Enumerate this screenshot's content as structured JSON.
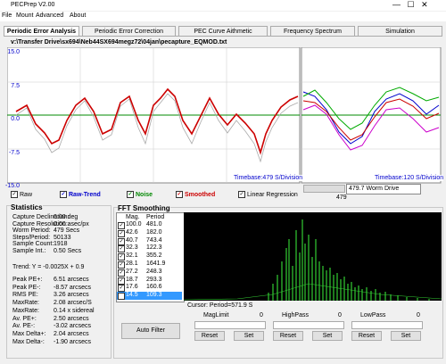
{
  "window": {
    "title": "PECPrep V2.00"
  },
  "menu": [
    "File",
    "Mount",
    "Advanced",
    "About"
  ],
  "tabs": [
    "Periodic Error Analysis",
    "Periodic Error Correction",
    "PEC Curve Aithmetic",
    "Frequency Spectrum",
    "Simulation"
  ],
  "file_path": "v:\\Transfer Drive\\sx694\\Neb44SX694megz72\\04jan\\pecapture_EQMOD.txt",
  "main_plot": {
    "yticks": [
      "15.0",
      "7.5",
      "0.0",
      "-7.5",
      "-15.0"
    ],
    "timebase": "Timebase:479 S/Division"
  },
  "side_plot": {
    "timebase": "Timebase:120 S/Division"
  },
  "checkboxes": [
    "Raw",
    "Raw-Trend",
    "Noise",
    "Smoothed",
    "Linear Regression"
  ],
  "worm": {
    "dropdown": "479.7 Worm Drive",
    "value": "479"
  },
  "statistics": {
    "title": "Statistics",
    "rows_top": [
      [
        "Capture Declination:",
        "0.00 deg"
      ],
      [
        "Capture Resolution:",
        "0.00 asec/px"
      ],
      [
        "Worm Period:",
        "479 Secs"
      ],
      [
        "Steps/Period:",
        "50133"
      ],
      [
        "Sample Count:",
        "1918"
      ],
      [
        "Sample Int.:",
        "0.50 Secs"
      ]
    ],
    "trend": "Trend: Y = -0.0025X + 0.9",
    "rows_bottom": [
      [
        "Peak PE+:",
        "6.51 arcsecs"
      ],
      [
        "Peak PE-:",
        "-8.57 arcsecs"
      ],
      [
        "RMS PE:",
        "3.26 arcsecs"
      ],
      [
        "MaxRate:",
        "2.08 arcsec/S"
      ],
      [
        "MaxRate:",
        "0.14 x sidereal"
      ],
      [
        "Av. PE+:",
        "2.50 arcsecs"
      ],
      [
        "Av. PE-:",
        "-3.02 arcsecs"
      ],
      [
        "Max Delta+:",
        "2.04 arcsecs"
      ],
      [
        "Max Delta-:",
        "-1.90 arcsecs"
      ]
    ]
  },
  "fft": {
    "title": "FFT Smoothing",
    "columns": [
      "Mag.",
      "Period"
    ],
    "rows": [
      [
        "100.0",
        "481.0"
      ],
      [
        "42.6",
        "182.0"
      ],
      [
        "40.7",
        "743.4"
      ],
      [
        "32.3",
        "122.3"
      ],
      [
        "32.1",
        "355.2"
      ],
      [
        "28.1",
        "1641.9"
      ],
      [
        "27.2",
        "248.3"
      ],
      [
        "18.7",
        "293.3"
      ],
      [
        "17.6",
        "160.6"
      ],
      [
        "14.5",
        "109.3"
      ]
    ],
    "cursor": "Cursor: Period=571.9 S",
    "auto_filter": "Auto Filter",
    "controls": [
      {
        "label": "MagLimit",
        "value": "0"
      },
      {
        "label": "HighPass",
        "value": "0"
      },
      {
        "label": "LowPass",
        "value": "0"
      }
    ],
    "reset": "Reset",
    "set": "Set"
  }
}
